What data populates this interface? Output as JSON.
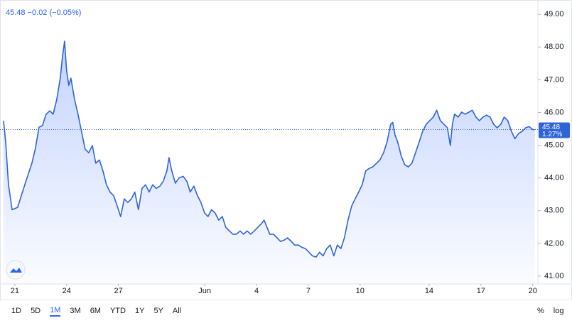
{
  "header": {
    "price": "45.48",
    "change": "−0.02",
    "change_percent": "(−0.05%)"
  },
  "chart_data": {
    "type": "area",
    "color": "#2f64d8",
    "x": [
      -0.66,
      -0.53,
      -0.37,
      -0.16,
      0.16,
      0.58,
      0.99,
      1.19,
      1.4,
      1.6,
      1.81,
      2.02,
      2.22,
      2.43,
      2.63,
      2.76,
      2.88,
      3.0,
      3.13,
      3.25,
      3.46,
      3.66,
      3.87,
      4.07,
      4.28,
      4.49,
      4.69,
      4.9,
      5.1,
      5.31,
      5.51,
      5.72,
      5.93,
      6.13,
      6.34,
      6.54,
      6.75,
      6.95,
      7.16,
      7.37,
      7.57,
      7.78,
      7.98,
      8.19,
      8.4,
      8.6,
      8.81,
      8.93,
      9.09,
      9.3,
      9.51,
      9.75,
      9.96,
      10.16,
      10.37,
      10.58,
      10.78,
      10.99,
      11.19,
      11.4,
      11.6,
      11.81,
      12.02,
      12.22,
      12.43,
      12.63,
      12.84,
      13.05,
      13.25,
      13.46,
      13.66,
      13.87,
      14.07,
      14.28,
      14.44,
      14.61,
      14.77,
      14.98,
      15.19,
      15.39,
      15.6,
      15.8,
      16.01,
      16.21,
      16.42,
      16.63,
      16.83,
      17.04,
      17.24,
      17.45,
      17.65,
      17.86,
      18.07,
      18.27,
      18.48,
      18.68,
      18.89,
      19.09,
      19.3,
      19.51,
      19.71,
      19.92,
      20.12,
      20.33,
      20.53,
      20.74,
      20.95,
      21.15,
      21.36,
      21.56,
      21.77,
      21.89,
      22.02,
      22.18,
      22.39,
      22.59,
      22.8,
      23.0,
      23.21,
      23.42,
      23.62,
      23.83,
      24.03,
      24.24,
      24.44,
      24.65,
      24.86,
      25.06,
      25.23,
      25.35,
      25.47,
      25.68,
      25.88,
      26.09,
      26.3,
      26.5,
      26.71,
      26.91,
      27.12,
      27.33,
      27.53,
      27.74,
      27.94,
      28.15,
      28.35,
      28.56,
      28.77,
      28.97,
      29.18,
      29.38,
      29.59,
      29.79,
      30.0,
      30.12
    ],
    "values": [
      45.75,
      45.1,
      43.8,
      43.03,
      43.1,
      43.8,
      44.45,
      44.9,
      45.55,
      45.6,
      45.95,
      46.05,
      45.95,
      46.4,
      47.05,
      47.7,
      48.18,
      47.26,
      46.83,
      47.05,
      46.4,
      45.95,
      45.4,
      44.88,
      44.77,
      44.99,
      44.45,
      44.55,
      44.22,
      43.79,
      43.57,
      43.46,
      43.14,
      42.82,
      43.36,
      43.25,
      43.36,
      43.57,
      43.03,
      43.68,
      43.79,
      43.57,
      43.79,
      43.68,
      43.75,
      43.9,
      44.22,
      44.62,
      44.22,
      43.84,
      44.0,
      44.05,
      43.9,
      43.57,
      43.75,
      43.46,
      43.25,
      42.93,
      42.82,
      43.03,
      42.93,
      42.71,
      42.82,
      42.49,
      42.38,
      42.28,
      42.28,
      42.38,
      42.28,
      42.38,
      42.28,
      42.38,
      42.49,
      42.6,
      42.71,
      42.49,
      42.28,
      42.28,
      42.17,
      42.06,
      42.1,
      42.17,
      42.06,
      41.95,
      41.95,
      41.88,
      41.84,
      41.73,
      41.62,
      41.58,
      41.73,
      41.62,
      41.84,
      41.95,
      41.62,
      41.95,
      41.84,
      42.17,
      42.71,
      43.14,
      43.36,
      43.57,
      43.79,
      44.22,
      44.29,
      44.34,
      44.45,
      44.55,
      44.77,
      45.1,
      45.64,
      45.7,
      45.32,
      45.1,
      44.66,
      44.4,
      44.34,
      44.45,
      44.77,
      45.1,
      45.42,
      45.64,
      45.75,
      45.86,
      46.07,
      45.75,
      45.64,
      45.53,
      44.99,
      45.64,
      45.95,
      45.86,
      46.01,
      45.95,
      46.01,
      46.07,
      45.86,
      45.75,
      45.86,
      45.92,
      45.86,
      45.64,
      45.53,
      45.64,
      45.86,
      45.75,
      45.42,
      45.2,
      45.36,
      45.42,
      45.53,
      45.57,
      45.48,
      45.48
    ],
    "last_price": 45.48,
    "last_change_label": "1.27%",
    "xlim": [
      -0.86,
      30.3
    ],
    "xticks": [
      {
        "value": 0,
        "label": "21"
      },
      {
        "value": 3,
        "label": "24"
      },
      {
        "value": 6,
        "label": "27"
      },
      {
        "value": 11,
        "label": "Jun"
      },
      {
        "value": 14,
        "label": "4"
      },
      {
        "value": 17,
        "label": "7"
      },
      {
        "value": 20,
        "label": "10"
      },
      {
        "value": 24,
        "label": "14"
      },
      {
        "value": 27,
        "label": "17"
      },
      {
        "value": 30,
        "label": "20"
      }
    ],
    "ylim": [
      40.76,
      49.33
    ],
    "yticks": [
      {
        "value": 41,
        "label": "41.00"
      },
      {
        "value": 42,
        "label": "42.00"
      },
      {
        "value": 43,
        "label": "43.00"
      },
      {
        "value": 44,
        "label": "44.00"
      },
      {
        "value": 45,
        "label": "45.00"
      },
      {
        "value": 46,
        "label": "46.00"
      },
      {
        "value": 47,
        "label": "47.00"
      },
      {
        "value": 48,
        "label": "48.00"
      },
      {
        "value": 49,
        "label": "49.00"
      }
    ],
    "grid": false
  },
  "ui": {
    "ranges": [
      "1D",
      "5D",
      "1M",
      "3M",
      "6M",
      "YTD",
      "1Y",
      "5Y",
      "All"
    ],
    "active_range_index": 2,
    "scale_buttons": [
      "%",
      "log"
    ]
  }
}
